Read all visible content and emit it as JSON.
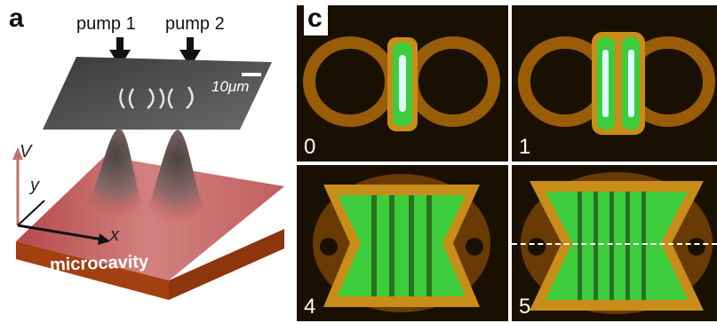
{
  "panel_a": {
    "letter": "a",
    "pump1": "pump 1",
    "pump2": "pump 2",
    "scalebar": "10μm",
    "substrate": "microcavity",
    "axis_v": "V",
    "axis_y": "y",
    "axis_x": "x"
  },
  "panel_c": {
    "letter": "c",
    "tiles": [
      {
        "label": "0"
      },
      {
        "label": "1"
      },
      {
        "label": "4"
      },
      {
        "label": "5"
      }
    ]
  },
  "colors": {
    "surface": "#c05858",
    "cavity": "#b04818",
    "glow": "#d27c10",
    "green": "#3ccc3c"
  }
}
